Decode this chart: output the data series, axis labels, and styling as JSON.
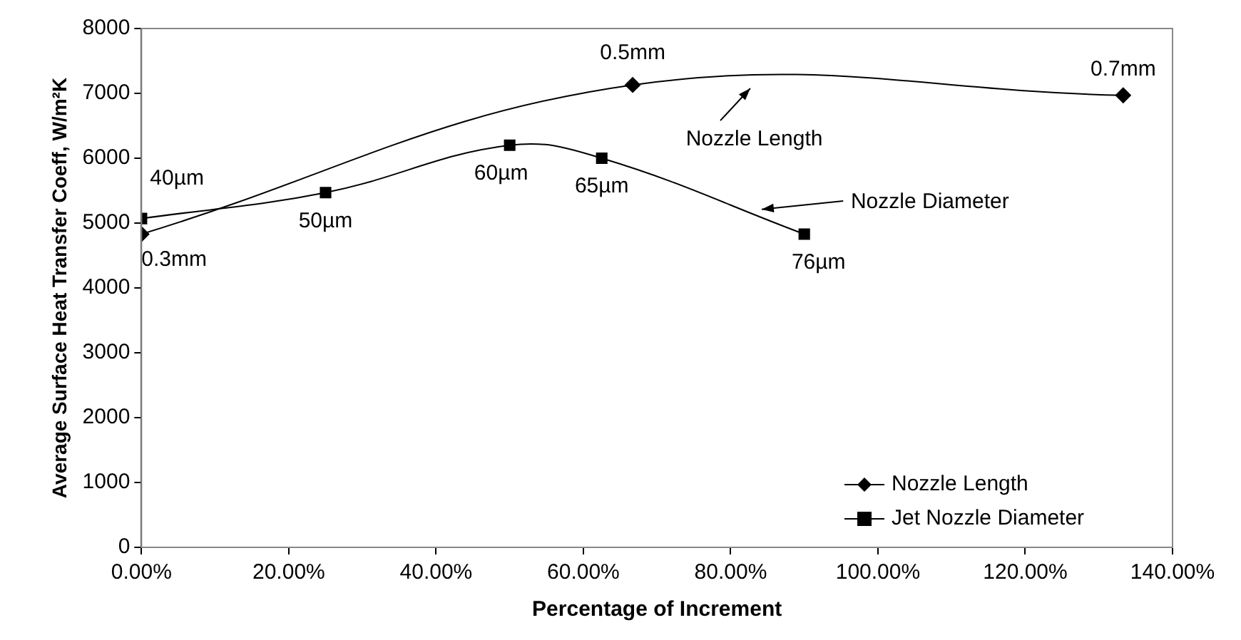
{
  "chart_data": {
    "type": "line",
    "xlabel": "Percentage of Increment",
    "ylabel": "Average Surface Heat Transfer Coeff, W/m²K",
    "xlim": [
      0,
      140
    ],
    "xticks": [
      {
        "value": 0,
        "label": "0.00%"
      },
      {
        "value": 20,
        "label": "20.00%"
      },
      {
        "value": 40,
        "label": "40.00%"
      },
      {
        "value": 60,
        "label": "60.00%"
      },
      {
        "value": 80,
        "label": "80.00%"
      },
      {
        "value": 100,
        "label": "100.00%"
      },
      {
        "value": 120,
        "label": "120.00%"
      },
      {
        "value": 140,
        "label": "140.00%"
      }
    ],
    "ylim": [
      0,
      8000
    ],
    "yticks": [
      0,
      1000,
      2000,
      3000,
      4000,
      5000,
      6000,
      7000,
      8000
    ],
    "series": [
      {
        "name": "Nozzle Length",
        "color": "#000000",
        "marker": "diamond",
        "x": [
          0,
          66.7,
          133.3
        ],
        "values": [
          4830,
          7130,
          6970
        ]
      },
      {
        "name": "Jet Nozzle Diameter",
        "color": "#000000",
        "marker": "square",
        "x": [
          0,
          25,
          50,
          62.5,
          90
        ],
        "values": [
          5070,
          5470,
          6200,
          6000,
          4830
        ]
      }
    ],
    "annotations": [
      {
        "text": "0.3mm",
        "x": 0,
        "y": 4830
      },
      {
        "text": "0.5mm",
        "x": 66.7,
        "y": 7130
      },
      {
        "text": "0.7mm",
        "x": 133.3,
        "y": 6970
      },
      {
        "text": "40µm",
        "x": 0,
        "y": 5070
      },
      {
        "text": "50µm",
        "x": 25,
        "y": 5470
      },
      {
        "text": "60µm",
        "x": 50,
        "y": 6200
      },
      {
        "text": "65µm",
        "x": 62.5,
        "y": 6000
      },
      {
        "text": "76µm",
        "x": 90,
        "y": 4830
      },
      "Nozzle Length",
      "Nozzle Diameter"
    ],
    "legend": "bottom right",
    "grid": false,
    "line_style": "solid"
  }
}
